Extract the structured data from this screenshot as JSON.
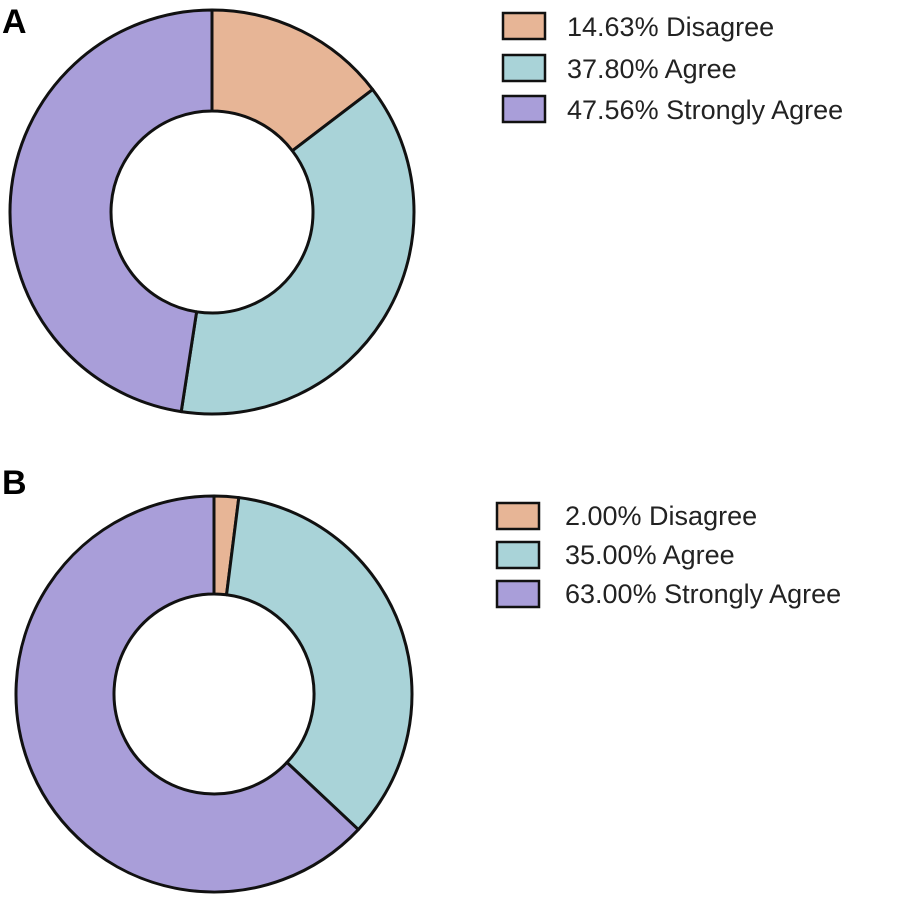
{
  "colors": {
    "Disagree": "#e7b596",
    "Agree": "#a9d3d8",
    "Strongly Agree": "#a99ed9"
  },
  "chart_data": [
    {
      "type": "pie",
      "variant": "donut",
      "panel_label": "A",
      "slices": [
        {
          "label": "Disagree",
          "value": 14.63,
          "legend": "14.63%  Disagree"
        },
        {
          "label": "Agree",
          "value": 37.8,
          "legend": "37.80%  Agree"
        },
        {
          "label": "Strongly Agree",
          "value": 47.56,
          "legend": "47.56%  Strongly Agree"
        }
      ],
      "legend_position": "top-right"
    },
    {
      "type": "pie",
      "variant": "donut",
      "panel_label": "B",
      "slices": [
        {
          "label": "Disagree",
          "value": 2.0,
          "legend": "2.00%  Disagree"
        },
        {
          "label": "Agree",
          "value": 35.0,
          "legend": "35.00%  Agree"
        },
        {
          "label": "Strongly Agree",
          "value": 63.0,
          "legend": "63.00%  Strongly Agree"
        }
      ],
      "legend_position": "top-right"
    }
  ]
}
